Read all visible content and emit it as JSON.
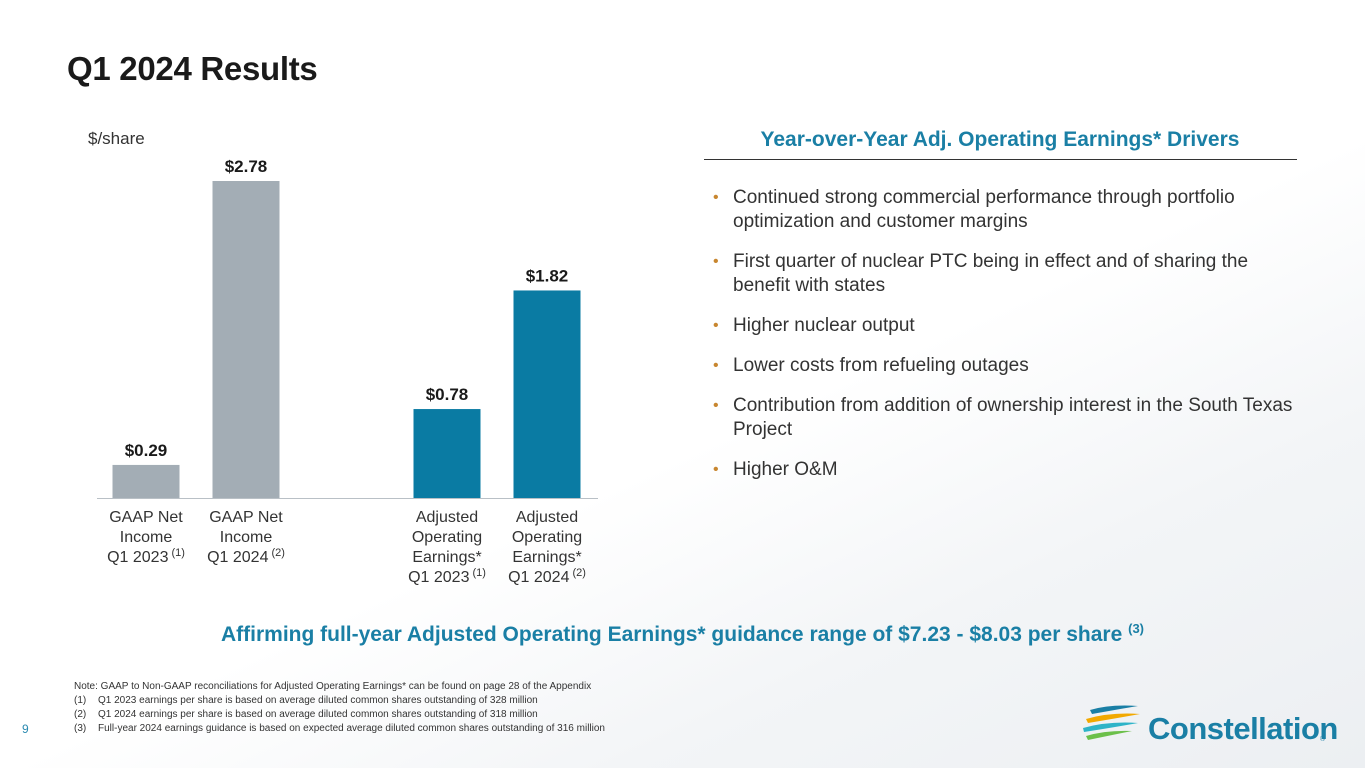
{
  "title": "Q1 2024 Results",
  "chart_data": {
    "type": "bar",
    "unit_label": "$/share",
    "categories": [
      {
        "lines": [
          "GAAP Net",
          "Income",
          "Q1 2023"
        ],
        "sup": "(1)"
      },
      {
        "lines": [
          "GAAP Net",
          "Income",
          "Q1 2024"
        ],
        "sup": "(2)"
      },
      {
        "lines": [
          "Adjusted",
          "Operating",
          "Earnings*",
          "Q1 2023"
        ],
        "sup": "(1)"
      },
      {
        "lines": [
          "Adjusted",
          "Operating",
          "Earnings*",
          "Q1 2024"
        ],
        "sup": "(2)"
      }
    ],
    "values": [
      0.29,
      2.78,
      0.78,
      1.82
    ],
    "value_labels": [
      "$0.29",
      "$2.78",
      "$0.78",
      "$1.82"
    ],
    "bar_colors": [
      "#a3adb5",
      "#a3adb5",
      "#0a7ba3",
      "#0a7ba3"
    ],
    "ylim": [
      0,
      2.78
    ],
    "grid": false
  },
  "drivers": {
    "title": "Year-over-Year Adj. Operating Earnings* Drivers",
    "items": [
      "Continued strong commercial performance through portfolio optimization and customer margins",
      "First quarter of nuclear PTC being in effect and of sharing the benefit with states",
      "Higher nuclear output",
      "Lower costs from refueling outages",
      "Contribution from addition of ownership interest in the South Texas Project",
      "Higher O&M"
    ],
    "bullet_char": "•"
  },
  "guidance": {
    "text": "Affirming full-year Adjusted Operating Earnings* guidance range of $7.23 - $8.03 per share",
    "sup": "(3)"
  },
  "notes": {
    "note": "Note: GAAP to Non-GAAP reconciliations for Adjusted Operating Earnings* can be found on page 28 of the Appendix",
    "footnotes": [
      {
        "num": "(1)",
        "text": "Q1 2023 earnings per share is based on average diluted common shares outstanding of 328 million"
      },
      {
        "num": "(2)",
        "text": "Q1 2024 earnings per share is based on average diluted common shares outstanding of 318 million"
      },
      {
        "num": "(3)",
        "text": "Full-year 2024 earnings guidance is based on expected average diluted common shares outstanding of 316 million"
      }
    ]
  },
  "page_number": "9",
  "logo": {
    "text": "Constellation",
    "reg": "®"
  },
  "colors": {
    "accent": "#1a7fa5",
    "bar_gaap": "#a3adb5",
    "bar_adjusted": "#0a7ba3",
    "bullet": "#c8862f"
  }
}
